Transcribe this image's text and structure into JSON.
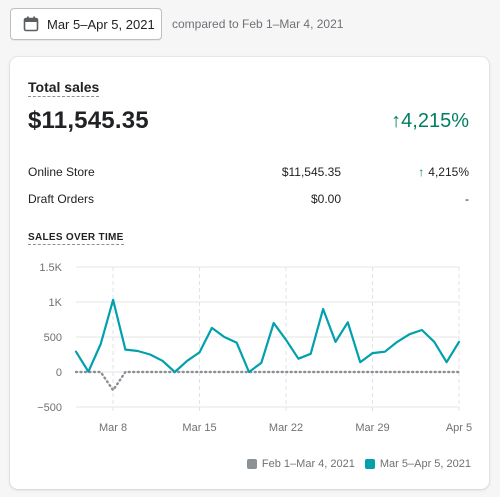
{
  "date_range": {
    "label": "Mar 5–Apr 5, 2021",
    "icon": "calendar-icon"
  },
  "comparison": {
    "text": "compared to Feb 1–Mar 4, 2021"
  },
  "summary": {
    "title": "Total sales",
    "value": "$11,545.35",
    "change": "4,215%",
    "change_color": "#007f5f"
  },
  "breakdown": [
    {
      "name": "Online Store",
      "value": "$11,545.35",
      "change": "4,215%",
      "trend": "up"
    },
    {
      "name": "Draft Orders",
      "value": "$0.00",
      "change": "-",
      "trend": "none"
    }
  ],
  "sales_over_time": {
    "title": "SALES OVER TIME",
    "legend": [
      {
        "label": "Feb 1–Mar 4, 2021",
        "color": "#8c9196"
      },
      {
        "label": "Mar 5–Apr 5, 2021",
        "color": "#00a0ac"
      }
    ]
  },
  "chart_data": {
    "type": "line",
    "x": [
      "Mar 5",
      "Mar 6",
      "Mar 7",
      "Mar 8",
      "Mar 9",
      "Mar 10",
      "Mar 11",
      "Mar 12",
      "Mar 13",
      "Mar 14",
      "Mar 15",
      "Mar 16",
      "Mar 17",
      "Mar 18",
      "Mar 19",
      "Mar 20",
      "Mar 21",
      "Mar 22",
      "Mar 23",
      "Mar 24",
      "Mar 25",
      "Mar 26",
      "Mar 27",
      "Mar 28",
      "Mar 29",
      "Mar 30",
      "Mar 31",
      "Apr 1",
      "Apr 2",
      "Apr 3",
      "Apr 4",
      "Apr 5"
    ],
    "x_tick_labels": [
      "Mar 8",
      "Mar 15",
      "Mar 22",
      "Mar 29",
      "Apr 5"
    ],
    "x_tick_indices": [
      3,
      10,
      17,
      24,
      31
    ],
    "y_tick_labels": [
      "1.5K",
      "1K",
      "500",
      "0",
      "−500"
    ],
    "y_tick_values": [
      1500,
      1000,
      500,
      0,
      -500
    ],
    "ylim": [
      -500,
      1500
    ],
    "grid": true,
    "legend_position": "bottom-right",
    "series": [
      {
        "name": "Feb 1–Mar 4, 2021",
        "color": "#8c9196",
        "style": "dotted",
        "values": [
          0,
          0,
          0,
          -260,
          0,
          0,
          0,
          0,
          0,
          0,
          0,
          0,
          0,
          0,
          0,
          0,
          0,
          0,
          0,
          0,
          0,
          0,
          0,
          0,
          0,
          0,
          0,
          0,
          0,
          0,
          0,
          0
        ]
      },
      {
        "name": "Mar 5–Apr 5, 2021",
        "color": "#00a0ac",
        "style": "solid",
        "values": [
          290,
          5,
          400,
          1030,
          320,
          300,
          250,
          160,
          0,
          160,
          280,
          630,
          500,
          420,
          0,
          130,
          700,
          460,
          190,
          260,
          900,
          430,
          710,
          140,
          270,
          290,
          430,
          540,
          600,
          430,
          140,
          430
        ]
      }
    ]
  }
}
